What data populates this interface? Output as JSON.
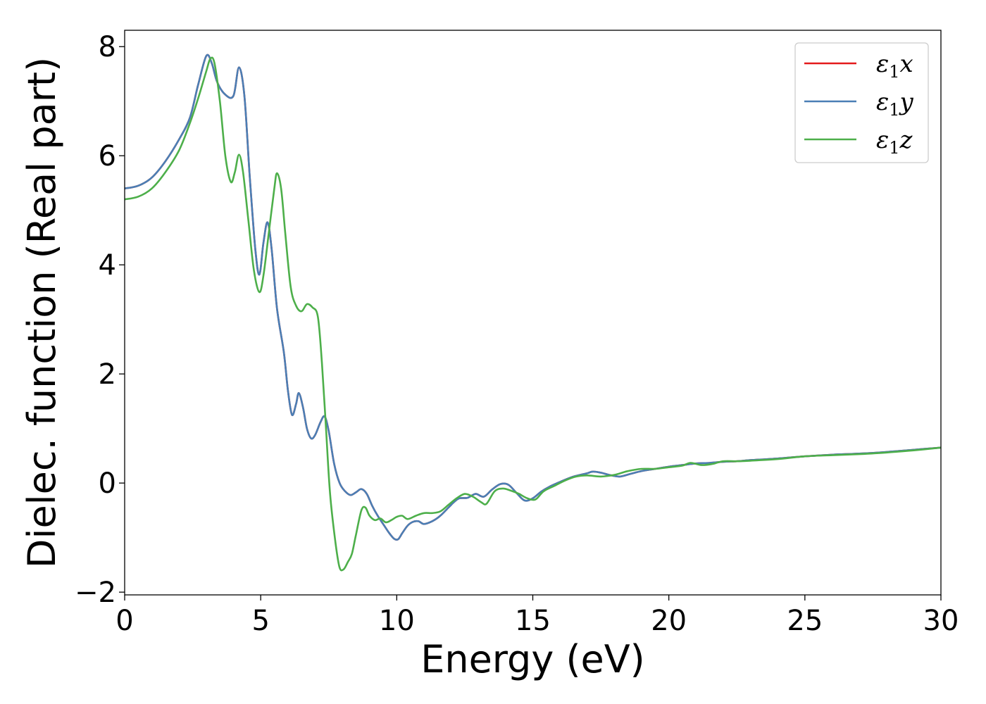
{
  "chart_data": {
    "type": "line",
    "title": "",
    "xlabel": "Energy (eV)",
    "ylabel": "Dielec. function (Real part)",
    "xlim": [
      0,
      30
    ],
    "ylim": [
      -2.05,
      8.3
    ],
    "xticks": [
      0,
      5,
      10,
      15,
      20,
      25,
      30
    ],
    "yticks": [
      -2,
      0,
      2,
      4,
      6,
      8
    ],
    "xtick_labels": [
      "0",
      "5",
      "10",
      "15",
      "20",
      "25",
      "30"
    ],
    "ytick_labels": [
      "−2",
      "0",
      "2",
      "4",
      "6",
      "8"
    ],
    "grid": false,
    "legend_position": "top-right",
    "series": [
      {
        "name": "ε₁x",
        "legend": {
          "main": "ε",
          "sub": "1",
          "tail": "x"
        },
        "color": "#e41a1c",
        "points": [
          [
            0,
            5.4
          ],
          [
            0.5,
            5.45
          ],
          [
            1,
            5.6
          ],
          [
            1.5,
            5.9
          ],
          [
            2,
            6.3
          ],
          [
            2.4,
            6.7
          ],
          [
            2.7,
            7.3
          ],
          [
            3.0,
            7.83
          ],
          [
            3.2,
            7.7
          ],
          [
            3.4,
            7.35
          ],
          [
            3.7,
            7.12
          ],
          [
            4.0,
            7.1
          ],
          [
            4.2,
            7.62
          ],
          [
            4.4,
            7.1
          ],
          [
            4.6,
            5.6
          ],
          [
            4.8,
            4.3
          ],
          [
            4.95,
            3.82
          ],
          [
            5.1,
            4.4
          ],
          [
            5.25,
            4.78
          ],
          [
            5.4,
            4.3
          ],
          [
            5.6,
            3.2
          ],
          [
            5.85,
            2.4
          ],
          [
            6.0,
            1.7
          ],
          [
            6.15,
            1.25
          ],
          [
            6.3,
            1.45
          ],
          [
            6.4,
            1.65
          ],
          [
            6.55,
            1.4
          ],
          [
            6.7,
            1.0
          ],
          [
            6.85,
            0.82
          ],
          [
            7.0,
            0.88
          ],
          [
            7.2,
            1.12
          ],
          [
            7.35,
            1.22
          ],
          [
            7.5,
            0.95
          ],
          [
            7.7,
            0.35
          ],
          [
            7.9,
            0.0
          ],
          [
            8.1,
            -0.15
          ],
          [
            8.3,
            -0.22
          ],
          [
            8.5,
            -0.17
          ],
          [
            8.7,
            -0.11
          ],
          [
            8.9,
            -0.2
          ],
          [
            9.1,
            -0.42
          ],
          [
            9.3,
            -0.6
          ],
          [
            9.5,
            -0.75
          ],
          [
            9.7,
            -0.9
          ],
          [
            9.9,
            -1.02
          ],
          [
            10.05,
            -1.03
          ],
          [
            10.2,
            -0.92
          ],
          [
            10.4,
            -0.78
          ],
          [
            10.6,
            -0.71
          ],
          [
            10.8,
            -0.7
          ],
          [
            11.0,
            -0.75
          ],
          [
            11.3,
            -0.7
          ],
          [
            11.6,
            -0.6
          ],
          [
            11.9,
            -0.45
          ],
          [
            12.1,
            -0.35
          ],
          [
            12.3,
            -0.28
          ],
          [
            12.6,
            -0.27
          ],
          [
            12.9,
            -0.2
          ],
          [
            13.2,
            -0.25
          ],
          [
            13.5,
            -0.12
          ],
          [
            13.8,
            -0.02
          ],
          [
            14.1,
            -0.03
          ],
          [
            14.4,
            -0.18
          ],
          [
            14.7,
            -0.32
          ],
          [
            15.0,
            -0.28
          ],
          [
            15.3,
            -0.16
          ],
          [
            15.6,
            -0.07
          ],
          [
            16.0,
            0.02
          ],
          [
            16.5,
            0.12
          ],
          [
            17.0,
            0.18
          ],
          [
            17.2,
            0.21
          ],
          [
            17.5,
            0.19
          ],
          [
            17.8,
            0.15
          ],
          [
            18.2,
            0.12
          ],
          [
            18.6,
            0.17
          ],
          [
            19.0,
            0.22
          ],
          [
            19.5,
            0.26
          ],
          [
            20.0,
            0.3
          ],
          [
            20.5,
            0.33
          ],
          [
            21.0,
            0.36
          ],
          [
            21.5,
            0.37
          ],
          [
            22.0,
            0.39
          ],
          [
            22.5,
            0.4
          ],
          [
            23.0,
            0.42
          ],
          [
            24.0,
            0.45
          ],
          [
            25.0,
            0.49
          ],
          [
            26.0,
            0.52
          ],
          [
            27.0,
            0.54
          ],
          [
            28.0,
            0.57
          ],
          [
            29.0,
            0.61
          ],
          [
            30.0,
            0.65
          ]
        ]
      },
      {
        "name": "ε₁y",
        "legend": {
          "main": "ε",
          "sub": "1",
          "tail": "y"
        },
        "color": "#4a7fb5",
        "points": [
          [
            0,
            5.4
          ],
          [
            0.5,
            5.45
          ],
          [
            1,
            5.6
          ],
          [
            1.5,
            5.9
          ],
          [
            2,
            6.3
          ],
          [
            2.4,
            6.7
          ],
          [
            2.7,
            7.3
          ],
          [
            3.0,
            7.83
          ],
          [
            3.2,
            7.7
          ],
          [
            3.4,
            7.35
          ],
          [
            3.7,
            7.12
          ],
          [
            4.0,
            7.1
          ],
          [
            4.2,
            7.62
          ],
          [
            4.4,
            7.1
          ],
          [
            4.6,
            5.6
          ],
          [
            4.8,
            4.3
          ],
          [
            4.95,
            3.82
          ],
          [
            5.1,
            4.4
          ],
          [
            5.25,
            4.78
          ],
          [
            5.4,
            4.3
          ],
          [
            5.6,
            3.2
          ],
          [
            5.85,
            2.4
          ],
          [
            6.0,
            1.7
          ],
          [
            6.15,
            1.25
          ],
          [
            6.3,
            1.45
          ],
          [
            6.4,
            1.65
          ],
          [
            6.55,
            1.4
          ],
          [
            6.7,
            1.0
          ],
          [
            6.85,
            0.82
          ],
          [
            7.0,
            0.88
          ],
          [
            7.2,
            1.12
          ],
          [
            7.35,
            1.22
          ],
          [
            7.5,
            0.95
          ],
          [
            7.7,
            0.35
          ],
          [
            7.9,
            0.0
          ],
          [
            8.1,
            -0.15
          ],
          [
            8.3,
            -0.22
          ],
          [
            8.5,
            -0.17
          ],
          [
            8.7,
            -0.11
          ],
          [
            8.9,
            -0.2
          ],
          [
            9.1,
            -0.42
          ],
          [
            9.3,
            -0.6
          ],
          [
            9.5,
            -0.75
          ],
          [
            9.7,
            -0.9
          ],
          [
            9.9,
            -1.02
          ],
          [
            10.05,
            -1.03
          ],
          [
            10.2,
            -0.92
          ],
          [
            10.4,
            -0.78
          ],
          [
            10.6,
            -0.71
          ],
          [
            10.8,
            -0.7
          ],
          [
            11.0,
            -0.75
          ],
          [
            11.3,
            -0.7
          ],
          [
            11.6,
            -0.6
          ],
          [
            11.9,
            -0.45
          ],
          [
            12.1,
            -0.35
          ],
          [
            12.3,
            -0.28
          ],
          [
            12.6,
            -0.27
          ],
          [
            12.9,
            -0.2
          ],
          [
            13.2,
            -0.25
          ],
          [
            13.5,
            -0.12
          ],
          [
            13.8,
            -0.02
          ],
          [
            14.1,
            -0.03
          ],
          [
            14.4,
            -0.18
          ],
          [
            14.7,
            -0.32
          ],
          [
            15.0,
            -0.28
          ],
          [
            15.3,
            -0.16
          ],
          [
            15.6,
            -0.07
          ],
          [
            16.0,
            0.02
          ],
          [
            16.5,
            0.12
          ],
          [
            17.0,
            0.18
          ],
          [
            17.2,
            0.21
          ],
          [
            17.5,
            0.19
          ],
          [
            17.8,
            0.15
          ],
          [
            18.2,
            0.12
          ],
          [
            18.6,
            0.17
          ],
          [
            19.0,
            0.22
          ],
          [
            19.5,
            0.26
          ],
          [
            20.0,
            0.3
          ],
          [
            20.5,
            0.33
          ],
          [
            21.0,
            0.36
          ],
          [
            21.5,
            0.37
          ],
          [
            22.0,
            0.39
          ],
          [
            22.5,
            0.4
          ],
          [
            23.0,
            0.42
          ],
          [
            24.0,
            0.45
          ],
          [
            25.0,
            0.49
          ],
          [
            26.0,
            0.52
          ],
          [
            27.0,
            0.54
          ],
          [
            28.0,
            0.57
          ],
          [
            29.0,
            0.61
          ],
          [
            30.0,
            0.65
          ]
        ]
      },
      {
        "name": "ε₁z",
        "legend": {
          "main": "ε",
          "sub": "1",
          "tail": "z"
        },
        "color": "#4daf4a",
        "points": [
          [
            0,
            5.2
          ],
          [
            0.5,
            5.25
          ],
          [
            1,
            5.4
          ],
          [
            1.5,
            5.7
          ],
          [
            2,
            6.1
          ],
          [
            2.4,
            6.6
          ],
          [
            2.7,
            7.05
          ],
          [
            3.0,
            7.55
          ],
          [
            3.15,
            7.78
          ],
          [
            3.3,
            7.7
          ],
          [
            3.5,
            7.0
          ],
          [
            3.7,
            6.0
          ],
          [
            3.9,
            5.52
          ],
          [
            4.05,
            5.7
          ],
          [
            4.2,
            6.02
          ],
          [
            4.35,
            5.7
          ],
          [
            4.55,
            4.8
          ],
          [
            4.75,
            3.9
          ],
          [
            4.95,
            3.5
          ],
          [
            5.1,
            3.8
          ],
          [
            5.3,
            4.6
          ],
          [
            5.5,
            5.4
          ],
          [
            5.6,
            5.68
          ],
          [
            5.75,
            5.4
          ],
          [
            5.9,
            4.6
          ],
          [
            6.1,
            3.6
          ],
          [
            6.3,
            3.25
          ],
          [
            6.5,
            3.15
          ],
          [
            6.7,
            3.28
          ],
          [
            6.9,
            3.22
          ],
          [
            7.1,
            3.05
          ],
          [
            7.25,
            2.2
          ],
          [
            7.4,
            1.0
          ],
          [
            7.55,
            -0.2
          ],
          [
            7.75,
            -1.1
          ],
          [
            7.9,
            -1.55
          ],
          [
            8.05,
            -1.58
          ],
          [
            8.2,
            -1.45
          ],
          [
            8.35,
            -1.3
          ],
          [
            8.5,
            -0.95
          ],
          [
            8.7,
            -0.5
          ],
          [
            8.85,
            -0.45
          ],
          [
            9.0,
            -0.6
          ],
          [
            9.2,
            -0.68
          ],
          [
            9.4,
            -0.65
          ],
          [
            9.6,
            -0.72
          ],
          [
            9.8,
            -0.68
          ],
          [
            10.0,
            -0.62
          ],
          [
            10.2,
            -0.6
          ],
          [
            10.4,
            -0.66
          ],
          [
            10.7,
            -0.6
          ],
          [
            11.0,
            -0.55
          ],
          [
            11.3,
            -0.55
          ],
          [
            11.6,
            -0.52
          ],
          [
            11.9,
            -0.4
          ],
          [
            12.2,
            -0.28
          ],
          [
            12.5,
            -0.2
          ],
          [
            12.8,
            -0.25
          ],
          [
            13.1,
            -0.35
          ],
          [
            13.3,
            -0.38
          ],
          [
            13.6,
            -0.15
          ],
          [
            13.9,
            -0.1
          ],
          [
            14.2,
            -0.14
          ],
          [
            14.5,
            -0.2
          ],
          [
            14.8,
            -0.28
          ],
          [
            15.1,
            -0.3
          ],
          [
            15.4,
            -0.15
          ],
          [
            15.8,
            -0.05
          ],
          [
            16.2,
            0.05
          ],
          [
            16.6,
            0.12
          ],
          [
            17.0,
            0.14
          ],
          [
            17.5,
            0.12
          ],
          [
            18.0,
            0.15
          ],
          [
            18.5,
            0.22
          ],
          [
            19.0,
            0.26
          ],
          [
            19.5,
            0.26
          ],
          [
            20.0,
            0.29
          ],
          [
            20.5,
            0.32
          ],
          [
            20.8,
            0.37
          ],
          [
            21.2,
            0.33
          ],
          [
            21.6,
            0.35
          ],
          [
            22.0,
            0.4
          ],
          [
            22.5,
            0.4
          ],
          [
            23.0,
            0.41
          ],
          [
            24.0,
            0.44
          ],
          [
            25.0,
            0.49
          ],
          [
            26.0,
            0.51
          ],
          [
            27.0,
            0.53
          ],
          [
            28.0,
            0.56
          ],
          [
            29.0,
            0.6
          ],
          [
            30.0,
            0.65
          ]
        ]
      }
    ]
  }
}
